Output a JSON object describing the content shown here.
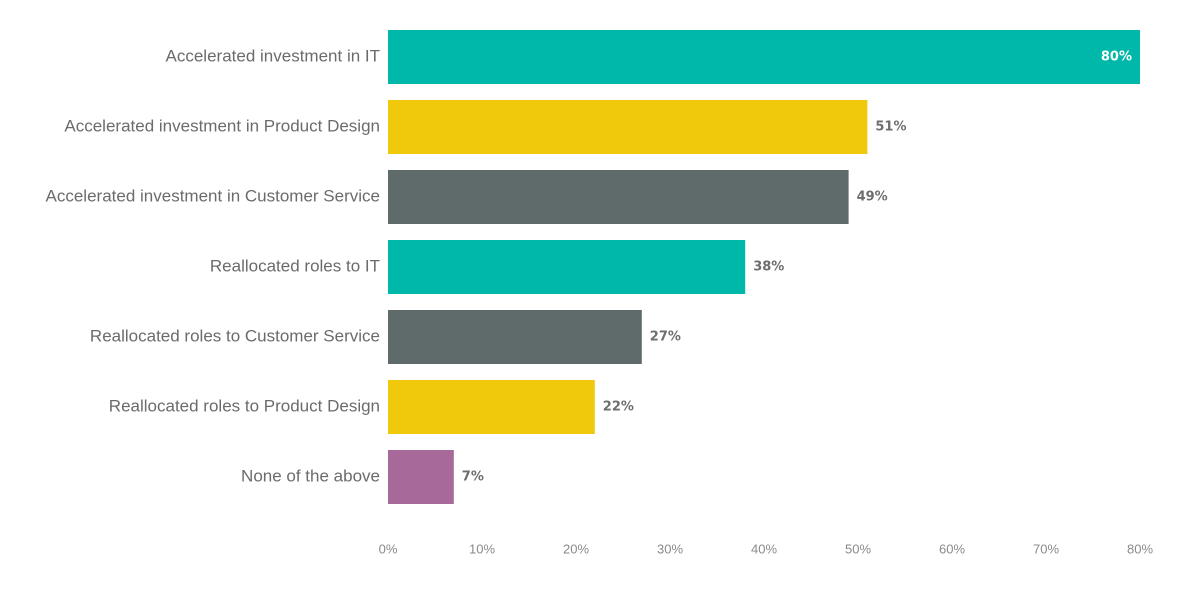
{
  "chart_data": {
    "type": "bar",
    "orientation": "horizontal",
    "categories": [
      "Accelerated investment in IT",
      "Accelerated investment in Product Design",
      "Accelerated investment in Customer Service",
      "Reallocated roles to IT",
      "Reallocated roles to Customer Service",
      "Reallocated roles to Product Design",
      "None of the above"
    ],
    "values": [
      80,
      51,
      49,
      38,
      27,
      22,
      7
    ],
    "value_labels": [
      "80%",
      "51%",
      "49%",
      "38%",
      "27%",
      "22%",
      "7%"
    ],
    "colors": [
      "#00b8a9",
      "#f0c80c",
      "#5f6b6b",
      "#00b8a9",
      "#5f6b6b",
      "#f0c80c",
      "#a66999"
    ],
    "xlim": [
      0,
      80
    ],
    "xticks": [
      0,
      10,
      20,
      30,
      40,
      50,
      60,
      70,
      80
    ],
    "xtick_labels": [
      "0%",
      "10%",
      "20%",
      "30%",
      "40%",
      "50%",
      "60%",
      "70%",
      "80%"
    ],
    "title": "",
    "xlabel": "",
    "ylabel": "",
    "grid": false,
    "legend": "none"
  }
}
